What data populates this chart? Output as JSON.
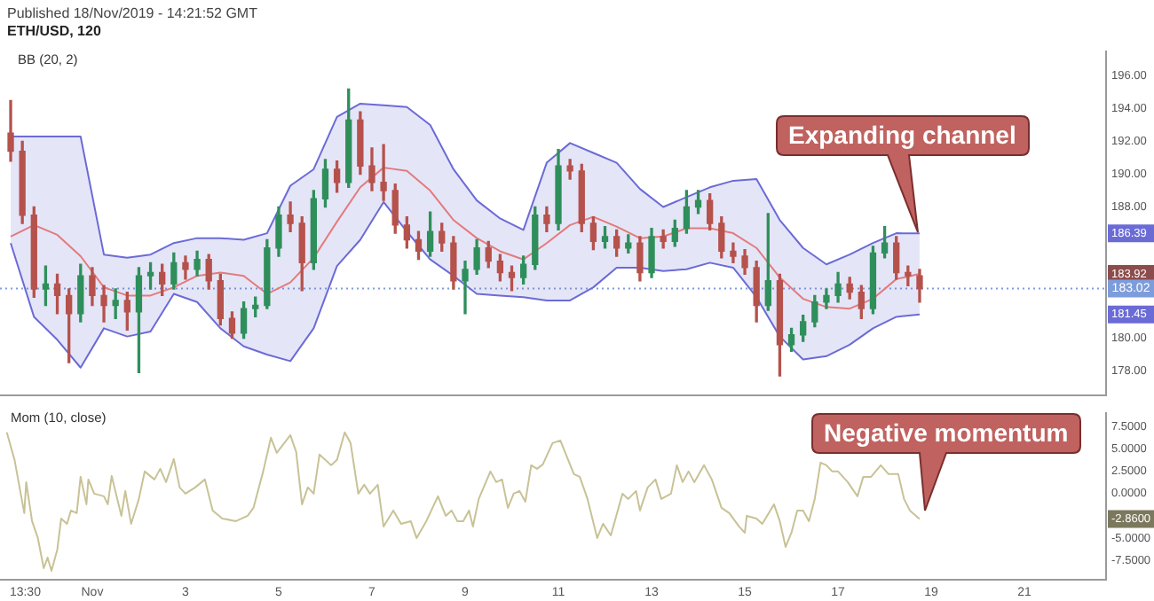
{
  "chart_data": [
    {
      "type": "candlestick",
      "title": "Published 18/Nov/2019 - 14:21:52 GMT",
      "subtitle": "ETH/USD, 120",
      "x": [
        "2019-10-30T06:00",
        "2019-10-30T12:00",
        "2019-10-30T18:00",
        "2019-10-31T00:00",
        "2019-10-31T06:00",
        "2019-10-31T12:00",
        "2019-10-31T18:00",
        "2019-11-01T00:00",
        "2019-11-01T06:00",
        "2019-11-01T12:00",
        "2019-11-01T18:00",
        "2019-11-02T00:00",
        "2019-11-02T06:00",
        "2019-11-02T12:00",
        "2019-11-02T18:00",
        "2019-11-03T00:00",
        "2019-11-03T06:00",
        "2019-11-03T12:00",
        "2019-11-03T18:00",
        "2019-11-04T00:00",
        "2019-11-04T06:00",
        "2019-11-04T12:00",
        "2019-11-04T18:00",
        "2019-11-05T00:00",
        "2019-11-05T06:00",
        "2019-11-05T12:00",
        "2019-11-05T18:00",
        "2019-11-06T00:00",
        "2019-11-06T06:00",
        "2019-11-06T12:00",
        "2019-11-06T18:00",
        "2019-11-07T00:00",
        "2019-11-07T06:00",
        "2019-11-07T12:00",
        "2019-11-07T18:00",
        "2019-11-08T00:00",
        "2019-11-08T06:00",
        "2019-11-08T12:00",
        "2019-11-08T18:00",
        "2019-11-09T00:00",
        "2019-11-09T06:00",
        "2019-11-09T12:00",
        "2019-11-09T18:00",
        "2019-11-10T00:00",
        "2019-11-10T06:00",
        "2019-11-10T12:00",
        "2019-11-10T18:00",
        "2019-11-11T00:00",
        "2019-11-11T06:00",
        "2019-11-11T12:00",
        "2019-11-11T18:00",
        "2019-11-12T00:00",
        "2019-11-12T06:00",
        "2019-11-12T12:00",
        "2019-11-12T18:00",
        "2019-11-13T00:00",
        "2019-11-13T06:00",
        "2019-11-13T12:00",
        "2019-11-13T18:00",
        "2019-11-14T00:00",
        "2019-11-14T06:00",
        "2019-11-14T12:00",
        "2019-11-14T18:00",
        "2019-11-15T00:00",
        "2019-11-15T06:00",
        "2019-11-15T12:00",
        "2019-11-15T18:00",
        "2019-11-16T00:00",
        "2019-11-16T06:00",
        "2019-11-16T12:00",
        "2019-11-16T18:00",
        "2019-11-17T00:00",
        "2019-11-17T06:00",
        "2019-11-17T12:00",
        "2019-11-17T18:00",
        "2019-11-18T00:00",
        "2019-11-18T06:00",
        "2019-11-18T12:00",
        "2019-11-18T18:00"
      ],
      "ohlc": [
        [
          192.5,
          194.5,
          190.8,
          191.4
        ],
        [
          191.4,
          192.0,
          187.0,
          187.5
        ],
        [
          187.5,
          188.0,
          182.5,
          183.0
        ],
        [
          183.0,
          184.4,
          182.0,
          183.3
        ],
        [
          183.3,
          183.9,
          181.5,
          182.6
        ],
        [
          182.6,
          183.0,
          178.5,
          181.5
        ],
        [
          181.5,
          184.5,
          181.0,
          183.8
        ],
        [
          183.8,
          184.3,
          182.0,
          182.6
        ],
        [
          182.6,
          183.2,
          181.0,
          182.0
        ],
        [
          182.0,
          183.0,
          181.2,
          182.3
        ],
        [
          182.3,
          182.8,
          180.5,
          181.6
        ],
        [
          181.6,
          184.3,
          177.9,
          183.8
        ],
        [
          183.8,
          184.6,
          183.0,
          184.0
        ],
        [
          184.0,
          184.5,
          182.6,
          183.3
        ],
        [
          183.3,
          185.2,
          183.0,
          184.6
        ],
        [
          184.6,
          185.0,
          183.6,
          184.2
        ],
        [
          184.2,
          185.3,
          183.8,
          184.8
        ],
        [
          184.8,
          185.1,
          183.0,
          183.5
        ],
        [
          183.5,
          183.9,
          180.8,
          181.2
        ],
        [
          181.2,
          181.6,
          180.0,
          180.3
        ],
        [
          180.3,
          182.2,
          180.0,
          181.8
        ],
        [
          181.8,
          182.5,
          181.3,
          182.0
        ],
        [
          182.0,
          186.0,
          181.8,
          185.5
        ],
        [
          185.5,
          188.0,
          185.0,
          187.5
        ],
        [
          187.5,
          188.3,
          186.5,
          187.0
        ],
        [
          187.0,
          187.4,
          182.9,
          184.6
        ],
        [
          184.6,
          189.0,
          184.2,
          188.5
        ],
        [
          188.5,
          190.9,
          188.0,
          190.3
        ],
        [
          190.3,
          190.8,
          188.9,
          189.5
        ],
        [
          189.5,
          195.2,
          189.2,
          193.3
        ],
        [
          193.3,
          193.8,
          190.0,
          190.5
        ],
        [
          190.5,
          191.6,
          189.0,
          189.5
        ],
        [
          189.5,
          191.8,
          188.4,
          189.0
        ],
        [
          189.0,
          189.4,
          186.4,
          186.9
        ],
        [
          186.9,
          187.4,
          185.5,
          186.0
        ],
        [
          186.0,
          186.5,
          184.8,
          185.3
        ],
        [
          185.3,
          187.7,
          185.0,
          186.5
        ],
        [
          186.5,
          187.0,
          185.3,
          185.8
        ],
        [
          185.8,
          186.2,
          183.0,
          183.5
        ],
        [
          183.5,
          184.7,
          181.5,
          184.2
        ],
        [
          184.2,
          186.0,
          183.9,
          185.5
        ],
        [
          185.5,
          185.9,
          184.3,
          184.7
        ],
        [
          184.7,
          185.1,
          183.5,
          184.0
        ],
        [
          184.0,
          184.4,
          182.9,
          183.7
        ],
        [
          183.7,
          185.0,
          183.3,
          184.5
        ],
        [
          184.5,
          188.0,
          184.2,
          187.5
        ],
        [
          187.5,
          188.0,
          186.5,
          187.0
        ],
        [
          187.0,
          191.5,
          186.6,
          190.5
        ],
        [
          190.5,
          190.9,
          189.7,
          190.2
        ],
        [
          190.2,
          190.6,
          186.5,
          187.0
        ],
        [
          187.0,
          187.4,
          185.4,
          185.9
        ],
        [
          185.9,
          186.8,
          185.5,
          186.2
        ],
        [
          186.2,
          186.6,
          185.0,
          185.5
        ],
        [
          185.5,
          186.3,
          185.2,
          185.8
        ],
        [
          185.8,
          186.2,
          183.5,
          184.0
        ],
        [
          184.0,
          186.7,
          183.7,
          186.2
        ],
        [
          186.2,
          186.6,
          185.5,
          185.9
        ],
        [
          185.9,
          187.2,
          185.6,
          186.7
        ],
        [
          186.7,
          189.0,
          186.4,
          188.0
        ],
        [
          188.0,
          189.0,
          187.6,
          188.4
        ],
        [
          188.4,
          188.8,
          186.6,
          187.0
        ],
        [
          187.0,
          187.4,
          184.9,
          185.3
        ],
        [
          185.3,
          185.8,
          184.6,
          185.0
        ],
        [
          185.0,
          185.4,
          183.9,
          184.3
        ],
        [
          184.3,
          184.7,
          181.0,
          182.0
        ],
        [
          182.0,
          187.6,
          181.7,
          183.5
        ],
        [
          183.5,
          183.9,
          177.7,
          179.6
        ],
        [
          179.6,
          180.6,
          179.2,
          180.2
        ],
        [
          180.2,
          181.4,
          179.8,
          181.0
        ],
        [
          181.0,
          182.6,
          180.7,
          182.2
        ],
        [
          182.2,
          183.0,
          181.8,
          182.6
        ],
        [
          182.6,
          184.0,
          182.2,
          183.3
        ],
        [
          183.3,
          183.7,
          182.4,
          182.8
        ],
        [
          182.8,
          183.2,
          181.2,
          181.8
        ],
        [
          181.8,
          185.6,
          181.5,
          185.2
        ],
        [
          185.2,
          186.8,
          184.9,
          185.8
        ],
        [
          185.8,
          186.2,
          183.6,
          184.0
        ],
        [
          184.0,
          184.4,
          183.2,
          183.8
        ],
        [
          183.8,
          184.2,
          182.2,
          183.02
        ]
      ],
      "series": [
        {
          "type": "line",
          "color": "#e37b7b",
          "x": [
            "2019-10-30T06:00",
            "2019-10-30T18:00",
            "2019-10-31T06:00",
            "2019-10-31T18:00",
            "2019-11-01T06:00",
            "2019-11-01T18:00",
            "2019-11-02T06:00",
            "2019-11-02T18:00",
            "2019-11-03T06:00",
            "2019-11-03T18:00",
            "2019-11-04T06:00",
            "2019-11-04T18:00",
            "2019-11-05T06:00",
            "2019-11-05T18:00",
            "2019-11-06T06:00",
            "2019-11-06T18:00",
            "2019-11-07T06:00",
            "2019-11-07T18:00",
            "2019-11-08T06:00",
            "2019-11-08T18:00",
            "2019-11-09T06:00",
            "2019-11-09T18:00",
            "2019-11-10T06:00",
            "2019-11-10T18:00",
            "2019-11-11T06:00",
            "2019-11-11T18:00",
            "2019-11-12T06:00",
            "2019-11-12T18:00",
            "2019-11-13T06:00",
            "2019-11-13T18:00",
            "2019-11-14T06:00",
            "2019-11-14T18:00",
            "2019-11-15T06:00",
            "2019-11-15T18:00",
            "2019-11-16T06:00",
            "2019-11-16T18:00",
            "2019-11-17T06:00",
            "2019-11-17T18:00",
            "2019-11-18T06:00",
            "2019-11-18T18:00"
          ],
          "values": [
            186.2,
            186.9,
            186.3,
            185.0,
            183.1,
            182.6,
            182.6,
            183.1,
            183.8,
            184.0,
            183.8,
            182.7,
            183.4,
            184.9,
            187.1,
            189.2,
            190.4,
            190.2,
            189.0,
            187.2,
            186.1,
            185.3,
            184.8,
            185.8,
            186.9,
            187.4,
            186.8,
            186.1,
            186.2,
            186.7,
            186.7,
            186.4,
            185.5,
            183.7,
            182.4,
            181.9,
            181.8,
            182.4,
            183.6,
            183.92
          ],
          "upper": [
            192.3,
            192.3,
            192.3,
            192.3,
            185.1,
            184.9,
            185.1,
            185.8,
            186.1,
            186.1,
            186.0,
            186.4,
            189.3,
            190.3,
            193.5,
            194.3,
            194.2,
            194.1,
            193.0,
            190.3,
            188.4,
            187.3,
            186.6,
            190.7,
            191.9,
            191.3,
            190.7,
            189.1,
            188.0,
            188.6,
            189.2,
            189.6,
            189.7,
            187.2,
            185.5,
            184.5,
            185.1,
            185.8,
            186.4,
            186.39
          ],
          "lower": [
            185.8,
            181.3,
            179.9,
            178.2,
            180.6,
            180.1,
            180.4,
            182.7,
            182.2,
            180.6,
            179.5,
            179.0,
            178.6,
            180.6,
            184.4,
            186.0,
            188.3,
            186.5,
            184.8,
            183.8,
            182.7,
            182.6,
            182.5,
            182.3,
            182.3,
            183.1,
            184.3,
            184.3,
            184.1,
            184.2,
            184.6,
            184.3,
            182.5,
            180.1,
            178.7,
            178.9,
            179.6,
            180.6,
            181.3,
            181.45
          ]
        },
        {
          "type": "line",
          "color": "#6b6bd6",
          "x": [
            "2019-10-30T06:00",
            "2019-10-30T18:00",
            "2019-10-31T06:00",
            "2019-10-31T18:00",
            "2019-11-01T06:00",
            "2019-11-01T18:00",
            "2019-11-02T06:00",
            "2019-11-02T18:00",
            "2019-11-03T06:00",
            "2019-11-03T18:00",
            "2019-11-04T06:00",
            "2019-11-04T18:00",
            "2019-11-05T06:00",
            "2019-11-05T18:00",
            "2019-11-06T06:00",
            "2019-11-06T18:00",
            "2019-11-07T06:00",
            "2019-11-07T18:00",
            "2019-11-08T06:00",
            "2019-11-08T18:00",
            "2019-11-09T06:00",
            "2019-11-09T18:00",
            "2019-11-10T06:00",
            "2019-11-10T18:00",
            "2019-11-11T06:00",
            "2019-11-11T18:00",
            "2019-11-12T06:00",
            "2019-11-12T18:00",
            "2019-11-13T06:00",
            "2019-11-13T18:00",
            "2019-11-14T06:00",
            "2019-11-14T18:00",
            "2019-11-15T06:00",
            "2019-11-15T18:00",
            "2019-11-16T06:00",
            "2019-11-16T18:00",
            "2019-11-17T06:00",
            "2019-11-17T18:00",
            "2019-11-18T06:00",
            "2019-11-18T18:00"
          ],
          "values": [
            192.3,
            192.3,
            192.3,
            192.3,
            185.1,
            184.9,
            185.1,
            185.8,
            186.1,
            186.1,
            186.0,
            186.4,
            189.3,
            190.3,
            193.5,
            194.3,
            194.2,
            194.1,
            193.0,
            190.3,
            188.4,
            187.3,
            186.6,
            190.7,
            191.9,
            191.3,
            190.7,
            189.1,
            188.0,
            188.6,
            189.2,
            189.6,
            189.7,
            187.2,
            185.5,
            184.5,
            185.1,
            185.8,
            186.4,
            186.39
          ]
        },
        {
          "type": "line",
          "color": "#6b6bd6",
          "x": [
            "2019-10-30T06:00",
            "2019-10-30T18:00",
            "2019-10-31T06:00",
            "2019-10-31T18:00",
            "2019-11-01T06:00",
            "2019-11-01T18:00",
            "2019-11-02T06:00",
            "2019-11-02T18:00",
            "2019-11-03T06:00",
            "2019-11-03T18:00",
            "2019-11-04T06:00",
            "2019-11-04T18:00",
            "2019-11-05T06:00",
            "2019-11-05T18:00",
            "2019-11-06T06:00",
            "2019-11-06T18:00",
            "2019-11-07T06:00",
            "2019-11-07T18:00",
            "2019-11-08T06:00",
            "2019-11-08T18:00",
            "2019-11-09T06:00",
            "2019-11-09T18:00",
            "2019-11-10T06:00",
            "2019-11-10T18:00",
            "2019-11-11T06:00",
            "2019-11-11T18:00",
            "2019-11-12T06:00",
            "2019-11-12T18:00",
            "2019-11-13T06:00",
            "2019-11-13T18:00",
            "2019-11-14T06:00",
            "2019-11-14T18:00",
            "2019-11-15T06:00",
            "2019-11-15T18:00",
            "2019-11-16T06:00",
            "2019-11-16T18:00",
            "2019-11-17T06:00",
            "2019-11-17T18:00",
            "2019-11-18T06:00",
            "2019-11-18T18:00"
          ],
          "values": [
            185.8,
            181.3,
            179.9,
            178.2,
            180.6,
            180.1,
            180.4,
            182.7,
            182.2,
            180.6,
            179.5,
            179.0,
            178.6,
            180.6,
            184.4,
            186.0,
            188.3,
            186.5,
            184.8,
            183.8,
            182.7,
            182.6,
            182.5,
            182.3,
            182.3,
            183.1,
            184.3,
            184.3,
            184.1,
            184.2,
            184.6,
            184.3,
            182.5,
            180.1,
            178.7,
            178.9,
            179.6,
            180.6,
            181.3,
            181.45
          ]
        }
      ],
      "xlim": [
        "2019-10-30T00:30",
        "2019-11-22T18:00"
      ],
      "ylim": [
        176.5,
        197.5
      ],
      "yticks": [
        {
          "value": 178,
          "label": "178.00"
        },
        {
          "value": 180,
          "label": "180.00"
        },
        181.45,
        183.92,
        186.39,
        {
          "value": 188,
          "label": "188.00"
        },
        {
          "value": 190,
          "label": "190.00"
        },
        {
          "value": 192,
          "label": "192.00"
        },
        {
          "value": 194,
          "label": "194.00"
        },
        {
          "value": 196,
          "label": "196.00"
        }
      ],
      "tick_labels": "y",
      "ref_lines": [
        {
          "axis": "y",
          "value": 183.02,
          "label": "183.02",
          "color": "#7d9cdb",
          "line_style": "dotted"
        }
      ],
      "annotations": [
        "BB (20, 2)",
        "Expanding channel"
      ]
    },
    {
      "type": "line",
      "title": "Mom (10, close)",
      "color": "#c8c296",
      "x": [
        "2019-10-30T04:00",
        "2019-10-30T08:00",
        "2019-10-30T13:00",
        "2019-10-30T14:00",
        "2019-10-30T17:00",
        "2019-10-30T20:00",
        "2019-10-30T23:00",
        "2019-10-31T01:00",
        "2019-10-31T03:00",
        "2019-10-31T06:00",
        "2019-10-31T08:00",
        "2019-10-31T11:00",
        "2019-10-31T13:00",
        "2019-10-31T16:00",
        "2019-10-31T18:00",
        "2019-10-31T21:00",
        "2019-10-31T22:00",
        "2019-11-01T01:00",
        "2019-11-01T06:00",
        "2019-11-01T08:00",
        "2019-11-01T10:00",
        "2019-11-01T15:00",
        "2019-11-01T17:00",
        "2019-11-01T20:00",
        "2019-11-02T00:00",
        "2019-11-02T03:00",
        "2019-11-02T08:00",
        "2019-11-02T11:00",
        "2019-11-02T14:00",
        "2019-11-02T18:00",
        "2019-11-02T21:00",
        "2019-11-03T00:00",
        "2019-11-03T05:00",
        "2019-11-03T10:00",
        "2019-11-03T14:00",
        "2019-11-03T19:00",
        "2019-11-04T02:00",
        "2019-11-04T08:00",
        "2019-11-04T11:00",
        "2019-11-04T16:00",
        "2019-11-04T20:00",
        "2019-11-04T23:00",
        "2019-11-05T06:00",
        "2019-11-05T09:00",
        "2019-11-05T12:00",
        "2019-11-05T15:00",
        "2019-11-05T18:00",
        "2019-11-05T21:00",
        "2019-11-06T03:00",
        "2019-11-06T06:00",
        "2019-11-06T10:00",
        "2019-11-06T13:00",
        "2019-11-06T17:00",
        "2019-11-06T20:00",
        "2019-11-06T23:00",
        "2019-11-07T03:00",
        "2019-11-07T06:00",
        "2019-11-07T11:00",
        "2019-11-07T15:00",
        "2019-11-07T20:00",
        "2019-11-07T23:00",
        "2019-11-08T04:00",
        "2019-11-08T10:00",
        "2019-11-08T14:00",
        "2019-11-08T17:00",
        "2019-11-08T20:00",
        "2019-11-08T23:00",
        "2019-11-09T02:00",
        "2019-11-09T04:00",
        "2019-11-09T07:00",
        "2019-11-09T13:00",
        "2019-11-09T16:00",
        "2019-11-09T19:00",
        "2019-11-09T22:00",
        "2019-11-10T01:00",
        "2019-11-10T04:00",
        "2019-11-10T07:00",
        "2019-11-10T10:00",
        "2019-11-10T13:00",
        "2019-11-10T16:00",
        "2019-11-10T21:00",
        "2019-11-11T01:00",
        "2019-11-11T08:00",
        "2019-11-11T11:00",
        "2019-11-11T15:00",
        "2019-11-11T20:00",
        "2019-11-11T23:00",
        "2019-11-12T03:00",
        "2019-11-12T09:00",
        "2019-11-12T12:00",
        "2019-11-12T16:00",
        "2019-11-12T18:00",
        "2019-11-12T22:00",
        "2019-11-13T02:00",
        "2019-11-13T05:00",
        "2019-11-13T10:00",
        "2019-11-13T13:00",
        "2019-11-13T16:00",
        "2019-11-13T19:00",
        "2019-11-13T22:00",
        "2019-11-14T03:00",
        "2019-11-14T07:00",
        "2019-11-14T12:00",
        "2019-11-14T16:00",
        "2019-11-14T21:00",
        "2019-11-15T00:00",
        "2019-11-15T01:00",
        "2019-11-15T06:00",
        "2019-11-15T09:00",
        "2019-11-15T15:00",
        "2019-11-15T18:00",
        "2019-11-15T21:00",
        "2019-11-16T00:00",
        "2019-11-16T03:00",
        "2019-11-16T06:00",
        "2019-11-16T09:00",
        "2019-11-16T12:00",
        "2019-11-16T15:00",
        "2019-11-16T18:00",
        "2019-11-16T21:00",
        "2019-11-17T00:00",
        "2019-11-17T05:00",
        "2019-11-17T10:00",
        "2019-11-17T13:00",
        "2019-11-17T17:00",
        "2019-11-17T22:00",
        "2019-11-18T02:00",
        "2019-11-18T07:00",
        "2019-11-18T10:00",
        "2019-11-18T13:00",
        "2019-11-18T18:00"
      ],
      "values": [
        6.9,
        3.8,
        -2.2,
        1.3,
        -3.1,
        -5.0,
        -8.4,
        -7.2,
        -8.7,
        -6.3,
        -2.8,
        -3.4,
        -1.9,
        -2.2,
        1.9,
        -1.2,
        1.6,
        0.0,
        -0.3,
        -1.2,
        2.0,
        -2.5,
        0.3,
        -3.4,
        -0.6,
        2.5,
        1.6,
        2.8,
        1.3,
        3.9,
        0.7,
        0.0,
        0.7,
        1.6,
        -1.9,
        -2.8,
        -3.1,
        -2.5,
        -1.6,
        2.5,
        6.3,
        4.6,
        6.6,
        4.7,
        -1.2,
        0.7,
        0.0,
        4.4,
        3.2,
        3.8,
        6.9,
        5.7,
        0.0,
        1.0,
        0.0,
        1.0,
        -3.7,
        -1.9,
        -3.4,
        -3.1,
        -5.0,
        -3.1,
        -0.3,
        -2.5,
        -1.9,
        -3.1,
        -3.1,
        -1.9,
        -3.7,
        -0.6,
        2.5,
        1.3,
        1.6,
        -1.6,
        0.0,
        0.3,
        -0.9,
        3.2,
        2.8,
        3.3,
        5.7,
        6.0,
        2.2,
        1.9,
        -0.6,
        -5.0,
        -3.4,
        -4.7,
        0.0,
        -0.6,
        0.3,
        -1.9,
        0.7,
        1.6,
        -0.6,
        0.0,
        3.2,
        1.3,
        2.5,
        1.3,
        3.2,
        1.6,
        -1.6,
        -2.2,
        -3.7,
        -4.4,
        -2.5,
        -2.8,
        -3.4,
        -1.2,
        -3.1,
        -6.0,
        -4.4,
        -1.9,
        -1.9,
        -3.1,
        -0.6,
        3.5,
        3.2,
        2.5,
        2.5,
        1.3,
        -0.3,
        1.9,
        1.9,
        3.2,
        2.2,
        2.2,
        -0.6,
        -1.9,
        -2.86
      ],
      "xlim": [
        "2019-10-30T00:30",
        "2019-11-22T18:00"
      ],
      "xticks": [
        {
          "value": "2019-10-30T13:30",
          "label": "13:30"
        },
        {
          "value": "2019-11-01",
          "label": "Nov"
        },
        {
          "value": "2019-11-03",
          "label": "3"
        },
        {
          "value": "2019-11-05",
          "label": "5"
        },
        {
          "value": "2019-11-07",
          "label": "7"
        },
        {
          "value": "2019-11-09",
          "label": "9"
        },
        {
          "value": "2019-11-11",
          "label": "11"
        },
        {
          "value": "2019-11-13",
          "label": "13"
        },
        {
          "value": "2019-11-15",
          "label": "15"
        },
        {
          "value": "2019-11-17",
          "label": "17"
        },
        {
          "value": "2019-11-19",
          "label": "19"
        },
        {
          "value": "2019-11-21",
          "label": "21"
        }
      ],
      "ylim": [
        -9.7,
        9.1
      ],
      "yticks": [
        {
          "value": -7.5,
          "label": "-7.5000"
        },
        {
          "value": -5,
          "label": "-5.0000"
        },
        {
          "value": -2.86,
          "label": "-2.8600"
        },
        {
          "value": 0,
          "label": "0.0000"
        },
        {
          "value": 2.5,
          "label": "2.5000"
        },
        {
          "value": 5,
          "label": "5.0000"
        },
        {
          "value": 7.5,
          "label": "7.5000"
        }
      ],
      "annotations": [
        "Negative momentum"
      ]
    }
  ]
}
